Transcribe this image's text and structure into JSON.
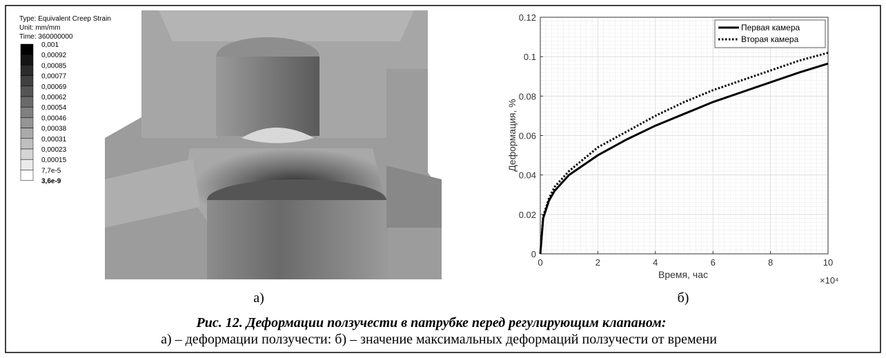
{
  "left_panel": {
    "legend": {
      "type": "Type: Equivalent Creep Strain",
      "unit": "Unit: mm/mm",
      "time": "Time: 360000000",
      "labels": [
        "0,001",
        "0,00092",
        "0,00085",
        "0,00077",
        "0,00069",
        "0,00062",
        "0,00054",
        "0,00046",
        "0,00038",
        "0,00031",
        "0,00023",
        "0,00015",
        "7,7e-5",
        "3,6e-9"
      ]
    },
    "label": "а)"
  },
  "chart_data": {
    "type": "line",
    "xlabel": "Время, час",
    "ylabel": "Деформация, %",
    "x_multiplier": "×10⁴",
    "x": [
      0,
      0.1,
      0.3,
      0.5,
      1,
      2,
      3,
      4,
      5,
      6,
      7,
      8,
      9,
      10
    ],
    "series": [
      {
        "name": "Первая камера",
        "color": "#000000",
        "style": "solid",
        "values": [
          0,
          0.018,
          0.027,
          0.032,
          0.04,
          0.05,
          0.058,
          0.065,
          0.071,
          0.077,
          0.082,
          0.087,
          0.092,
          0.0965
        ]
      },
      {
        "name": "Вторая камера",
        "color": "#000000",
        "style": "dotted",
        "values": [
          0,
          0.019,
          0.028,
          0.034,
          0.042,
          0.054,
          0.062,
          0.07,
          0.077,
          0.083,
          0.088,
          0.093,
          0.098,
          0.102
        ]
      }
    ],
    "xlim": [
      0,
      10
    ],
    "xticks": [
      0,
      2,
      4,
      6,
      8,
      10
    ],
    "ylim": [
      0,
      0.12
    ],
    "yticks": [
      0,
      0.02,
      0.04,
      0.06,
      0.08,
      0.1,
      0.12
    ],
    "grid": true,
    "legend": "upper right",
    "label": "б)"
  },
  "caption": {
    "title": "Рис. 12. Деформации ползучести в патрубке перед регулирующим клапаном:",
    "text": "а) – деформации ползучести: б) – значение максимальных деформаций ползучести от времени"
  }
}
